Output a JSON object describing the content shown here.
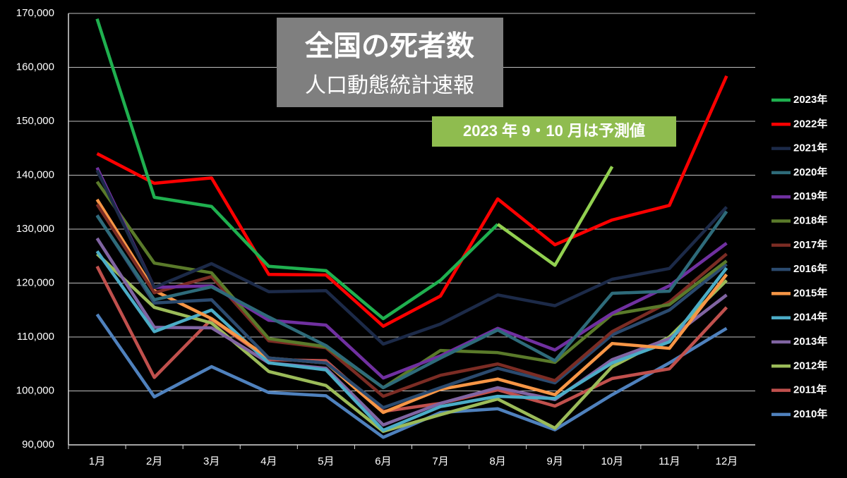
{
  "chart_data": {
    "type": "line",
    "title": "全国の死者数",
    "subtitle": "人口動態統計速報",
    "annotation": "2023 年 9・10 月は予測値",
    "annotation_color": "#8fbc4f",
    "categories": [
      "1月",
      "2月",
      "3月",
      "4月",
      "5月",
      "6月",
      "7月",
      "8月",
      "9月",
      "10月",
      "11月",
      "12月"
    ],
    "ylim": [
      90000,
      170000
    ],
    "yticks": [
      {
        "value": 90000,
        "label": "90,000"
      },
      {
        "value": 100000,
        "label": "100,000"
      },
      {
        "value": 110000,
        "label": "110,000"
      },
      {
        "value": 120000,
        "label": "120,000"
      },
      {
        "value": 130000,
        "label": "130,000"
      },
      {
        "value": 140000,
        "label": "140,000"
      },
      {
        "value": 150000,
        "label": "150,000"
      },
      {
        "value": 160000,
        "label": "160,000"
      },
      {
        "value": 170000,
        "label": "170,000"
      }
    ],
    "grid": true,
    "legend": "right",
    "series": [
      {
        "name": "2023年",
        "color": "#1fb04f",
        "forecast_color": "#92d050",
        "forecast_from": 7,
        "values": [
          169000,
          135900,
          134200,
          123100,
          122300,
          113400,
          120500,
          130900,
          123300,
          141600,
          null,
          null
        ]
      },
      {
        "name": "2022年",
        "color": "#ff0000",
        "values": [
          144000,
          138500,
          139500,
          121600,
          121500,
          112000,
          117600,
          135600,
          127100,
          131700,
          134400,
          158400
        ]
      },
      {
        "name": "2021年",
        "color": "#1c2a48",
        "values": [
          140900,
          119200,
          123600,
          118400,
          118600,
          108700,
          112400,
          117800,
          115800,
          120700,
          122700,
          134100
        ]
      },
      {
        "name": "2020年",
        "color": "#2e6b7a",
        "values": [
          132500,
          116900,
          119300,
          113700,
          108400,
          100600,
          106100,
          111300,
          105600,
          118100,
          118500,
          133300
        ]
      },
      {
        "name": "2019年",
        "color": "#7030a0",
        "values": [
          141400,
          119200,
          119500,
          113100,
          112200,
          102400,
          106500,
          111600,
          107600,
          114400,
          119500,
          127400
        ]
      },
      {
        "name": "2018年",
        "color": "#5a7a2a",
        "values": [
          138800,
          123700,
          121900,
          109700,
          108200,
          100600,
          107500,
          107100,
          105300,
          114200,
          116000,
          124100
        ]
      },
      {
        "name": "2017年",
        "color": "#7b2c24",
        "values": [
          134600,
          118200,
          121200,
          109300,
          108000,
          99000,
          102900,
          105000,
          101900,
          111000,
          116500,
          125400
        ]
      },
      {
        "name": "2016年",
        "color": "#2b4a6e",
        "values": [
          132600,
          116300,
          116900,
          106100,
          105200,
          96900,
          100600,
          104200,
          101500,
          110400,
          115000,
          123500
        ]
      },
      {
        "name": "2015年",
        "color": "#f79646",
        "values": [
          135500,
          118600,
          113400,
          106100,
          105200,
          96000,
          100300,
          102200,
          99300,
          108800,
          107900,
          121600
        ]
      },
      {
        "name": "2014年",
        "color": "#4bacc6",
        "values": [
          125900,
          111000,
          115000,
          105200,
          103900,
          92700,
          97100,
          99000,
          98600,
          105200,
          109100,
          122800
        ]
      },
      {
        "name": "2013年",
        "color": "#8064a2",
        "values": [
          128300,
          111800,
          111700,
          105200,
          104200,
          93700,
          97700,
          100600,
          98400,
          105800,
          109700,
          117800
        ]
      },
      {
        "name": "2012年",
        "color": "#9bbb59",
        "values": [
          125400,
          115500,
          112600,
          103600,
          101000,
          92500,
          95600,
          98500,
          93100,
          104500,
          110000,
          120500
        ]
      },
      {
        "name": "2011年",
        "color": "#c0504d",
        "values": [
          123100,
          102500,
          113300,
          105800,
          105600,
          96200,
          97700,
          100200,
          97200,
          102300,
          104100,
          115500
        ]
      },
      {
        "name": "2010年",
        "color": "#4f81bd",
        "values": [
          114200,
          98900,
          104500,
          99700,
          99100,
          91400,
          96000,
          96700,
          92800,
          99300,
          105200,
          111600
        ]
      }
    ]
  }
}
